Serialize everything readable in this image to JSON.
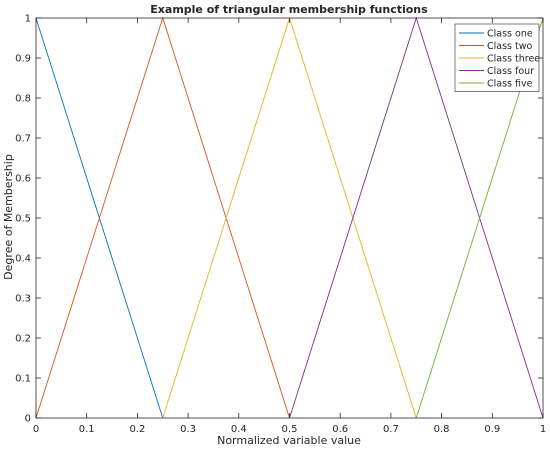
{
  "chart_data": {
    "type": "line",
    "title": "Example of triangular membership functions",
    "xlabel": "Normalized variable value",
    "ylabel": "Degree of Membership",
    "xlim": [
      0,
      1
    ],
    "ylim": [
      0,
      1
    ],
    "xticks": [
      "0",
      "0.1",
      "0.2",
      "0.3",
      "0.4",
      "0.5",
      "0.6",
      "0.7",
      "0.8",
      "0.9",
      "1"
    ],
    "yticks": [
      "0",
      "0.1",
      "0.2",
      "0.3",
      "0.4",
      "0.5",
      "0.6",
      "0.7",
      "0.8",
      "0.9",
      "1"
    ],
    "grid": false,
    "legend_position": "top-right",
    "series": [
      {
        "name": "Class one",
        "color": "#0072BD",
        "x": [
          0,
          0.25
        ],
        "y": [
          1,
          0
        ]
      },
      {
        "name": "Class two",
        "color": "#D95319",
        "x": [
          0,
          0.25,
          0.5
        ],
        "y": [
          0,
          1,
          0
        ]
      },
      {
        "name": "Class three",
        "color": "#EDB120",
        "x": [
          0.25,
          0.5,
          0.75
        ],
        "y": [
          0,
          1,
          0
        ]
      },
      {
        "name": "Class four",
        "color": "#7E2F8E",
        "x": [
          0.5,
          0.75,
          1
        ],
        "y": [
          0,
          1,
          0
        ]
      },
      {
        "name": "Class five",
        "color": "#77AC30",
        "x": [
          0.75,
          1
        ],
        "y": [
          0,
          1
        ]
      }
    ]
  }
}
